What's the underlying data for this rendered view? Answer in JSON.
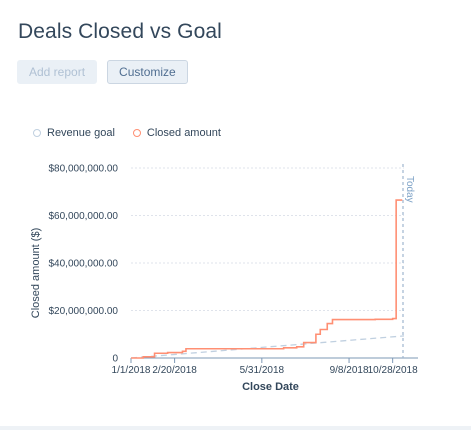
{
  "header": {
    "title": "Deals Closed vs Goal"
  },
  "toolbar": {
    "add_report_label": "Add report",
    "customize_label": "Customize"
  },
  "colors": {
    "goal": "#c0d0e0",
    "closed": "#ff8f73",
    "grid": "#dfe3eb",
    "axis": "#7c98b6",
    "today": "#9fb6cf"
  },
  "chart_data": {
    "type": "line",
    "xlabel": "Close Date",
    "ylabel": "Closed amount ($)",
    "x_tick_labels": [
      "1/1/2018",
      "2/20/2018",
      "5/31/2018",
      "9/8/2018",
      "10/28/2018"
    ],
    "x_tick_dates": [
      "2018-01-01",
      "2018-02-20",
      "2018-05-31",
      "2018-09-08",
      "2018-10-28"
    ],
    "xlim": [
      "2018-01-01",
      "2018-11-10"
    ],
    "y_tick_labels": [
      "0",
      "$20,000,000.00",
      "$40,000,000.00",
      "$60,000,000.00",
      "$80,000,000.00"
    ],
    "y_ticks": [
      0,
      20000000,
      40000000,
      60000000,
      80000000
    ],
    "ylim": [
      0,
      80000000
    ],
    "grid": true,
    "legend_position": "top-left",
    "today_label": "Today",
    "today_date": "2018-11-10",
    "series": [
      {
        "name": "Revenue goal",
        "style": "dashed",
        "x": [
          "2018-01-01",
          "2018-11-10"
        ],
        "y": [
          0,
          9300000
        ]
      },
      {
        "name": "Closed amount",
        "style": "step",
        "x": [
          "2018-01-01",
          "2018-01-15",
          "2018-01-28",
          "2018-02-12",
          "2018-03-01",
          "2018-03-05",
          "2018-05-31",
          "2018-06-25",
          "2018-07-10",
          "2018-07-18",
          "2018-08-01",
          "2018-08-06",
          "2018-08-14",
          "2018-08-20",
          "2018-10-08",
          "2018-10-28",
          "2018-11-01",
          "2018-11-08"
        ],
        "y": [
          0,
          500000,
          2000000,
          2300000,
          2800000,
          3900000,
          3900000,
          4300000,
          4700000,
          6500000,
          10000000,
          12000000,
          14500000,
          16200000,
          16300000,
          16600000,
          66500000,
          66500000
        ]
      }
    ]
  }
}
